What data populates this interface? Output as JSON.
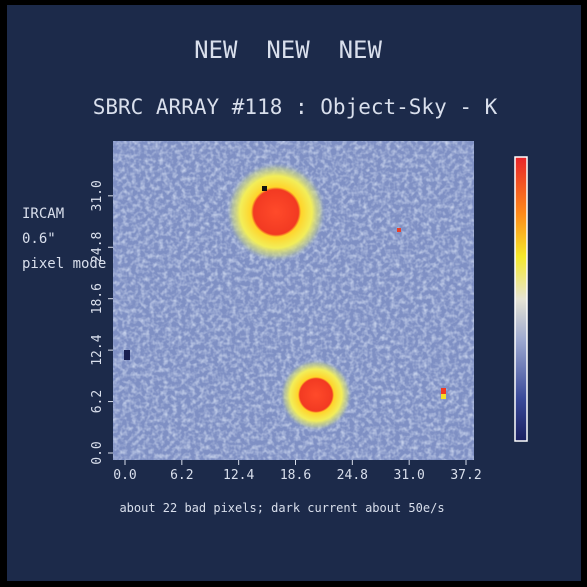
{
  "header": {
    "banner": "NEW  NEW  NEW",
    "title": "SBRC ARRAY #118 : Object-Sky - K"
  },
  "side_labels": [
    "IRCAM",
    "0.6\"",
    "pixel mode"
  ],
  "axes": {
    "xticks": [
      {
        "value": 0,
        "label": "0.0"
      },
      {
        "value": 6.2,
        "label": "6.2"
      },
      {
        "value": 12.4,
        "label": "12.4"
      },
      {
        "value": 18.6,
        "label": "18.6"
      },
      {
        "value": 24.8,
        "label": "24.8"
      },
      {
        "value": 31,
        "label": "31.0"
      },
      {
        "value": 37.2,
        "label": "37.2"
      }
    ],
    "yticks": [
      {
        "value": 0,
        "label": "0.0"
      },
      {
        "value": 6.2,
        "label": "6.2"
      },
      {
        "value": 12.4,
        "label": "12.4"
      },
      {
        "value": 18.6,
        "label": "18.6"
      },
      {
        "value": 24.8,
        "label": "24.8"
      },
      {
        "value": 31,
        "label": "31.0"
      }
    ]
  },
  "footer": "about 22 bad pixels; dark current about 50e/s"
}
